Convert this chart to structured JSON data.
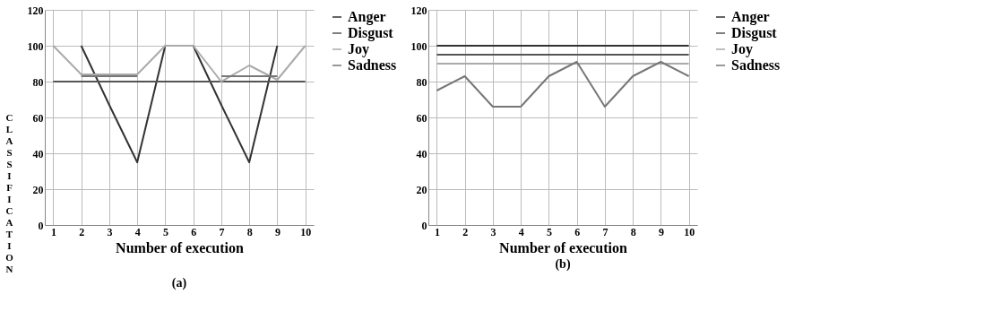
{
  "chart_data": [
    {
      "type": "line",
      "title": "(a)",
      "xlabel": "Number of execution",
      "ylabel": "CLASSIFICATION",
      "categories": [
        "1",
        "2",
        "3",
        "4",
        "5",
        "6",
        "7",
        "8",
        "9",
        "10"
      ],
      "ylim": [
        0,
        120
      ],
      "yticks": [
        0,
        20,
        40,
        60,
        80,
        100,
        120
      ],
      "grid": true,
      "legend": "right",
      "series": [
        {
          "name": "Anger",
          "color": "#333333",
          "values": [
            null,
            100,
            67,
            35,
            100,
            100,
            67,
            35,
            100,
            null
          ]
        },
        {
          "name": "Disgust",
          "color": "#555555",
          "values": [
            80,
            80,
            80,
            80,
            80,
            80,
            80,
            80,
            80,
            80
          ]
        },
        {
          "name": "Joy",
          "color": "#aaaaaa",
          "values": [
            100,
            84,
            84,
            84,
            100,
            100,
            80,
            89,
            81,
            100
          ]
        },
        {
          "name": "Sadness",
          "color": "#777777",
          "values": [
            null,
            83,
            83,
            83,
            null,
            null,
            83,
            83,
            83,
            null
          ]
        }
      ]
    },
    {
      "type": "line",
      "title": "(b)",
      "xlabel": "Number of execution",
      "categories": [
        "1",
        "2",
        "3",
        "4",
        "5",
        "6",
        "7",
        "8",
        "9",
        "10"
      ],
      "ylim": [
        0,
        120
      ],
      "yticks": [
        0,
        20,
        40,
        60,
        80,
        100,
        120
      ],
      "grid": true,
      "legend": "right",
      "series": [
        {
          "name": "Anger",
          "color": "#333333",
          "values": [
            100,
            100,
            100,
            100,
            100,
            100,
            100,
            100,
            100,
            100
          ]
        },
        {
          "name": "Disgust",
          "color": "#555555",
          "values": [
            95,
            95,
            95,
            95,
            95,
            95,
            95,
            95,
            95,
            95
          ]
        },
        {
          "name": "Joy",
          "color": "#aaaaaa",
          "values": [
            90,
            90,
            90,
            90,
            90,
            90,
            90,
            90,
            90,
            90
          ]
        },
        {
          "name": "Sadness",
          "color": "#777777",
          "values": [
            75,
            83,
            66,
            66,
            83,
            91,
            66,
            83,
            91,
            83
          ]
        }
      ]
    }
  ]
}
